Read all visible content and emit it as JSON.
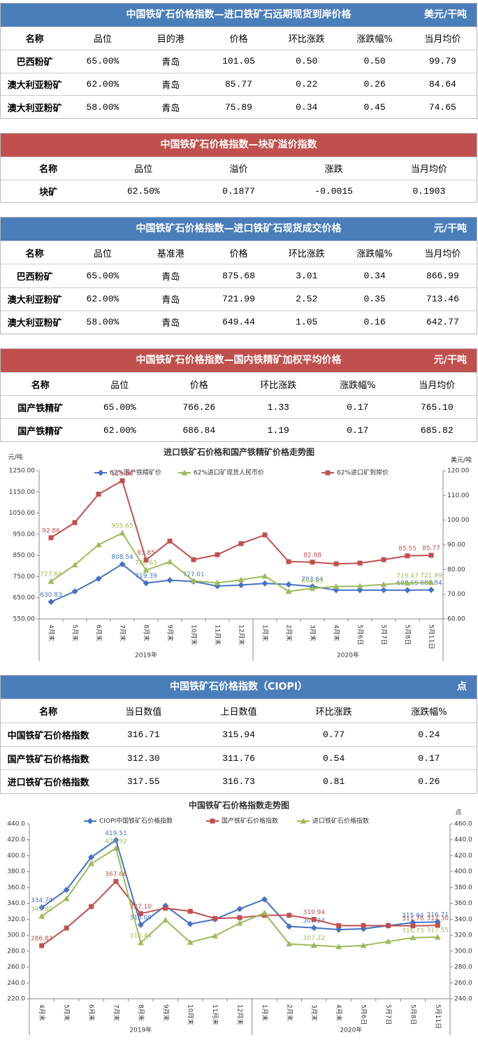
{
  "tables": [
    {
      "title": "中国铁矿石价格指数—进口铁矿石远期现货到岸价格",
      "unit": "美元/干吨",
      "header_color": "#4a7ebb",
      "columns": [
        "名称",
        "品位",
        "目的港",
        "价格",
        "环比涨跌",
        "涨跌幅%",
        "当月均价"
      ],
      "rows": [
        [
          "巴西粉矿",
          "65.00%",
          "青岛",
          "101.05",
          "0.50",
          "0.50",
          "99.79"
        ],
        [
          "澳大利亚粉矿",
          "62.00%",
          "青岛",
          "85.77",
          "0.22",
          "0.26",
          "84.64"
        ],
        [
          "澳大利亚粉矿",
          "58.00%",
          "青岛",
          "75.89",
          "0.34",
          "0.45",
          "74.65"
        ]
      ]
    },
    {
      "title": "中国铁矿石价格指数—块矿溢价指数",
      "header_color": "#c0504d",
      "columns": [
        "名称",
        "品位",
        "溢价",
        "涨跌",
        "当月均价"
      ],
      "rows": [
        [
          "块矿",
          "62.50%",
          "0.1877",
          "-0.0015",
          "0.1903"
        ]
      ]
    },
    {
      "title": "中国铁矿石价格指数—进口铁矿石现货成交价格",
      "unit": "元/干吨",
      "header_color": "#4a7ebb",
      "columns": [
        "名称",
        "品位",
        "基准港",
        "价格",
        "环比涨跌",
        "涨跌幅%",
        "当月均价"
      ],
      "rows": [
        [
          "巴西粉矿",
          "65.00%",
          "青岛",
          "875.68",
          "3.01",
          "0.34",
          "866.99"
        ],
        [
          "澳大利亚粉矿",
          "62.00%",
          "青岛",
          "721.99",
          "2.52",
          "0.35",
          "713.46"
        ],
        [
          "澳大利亚粉矿",
          "58.00%",
          "青岛",
          "649.44",
          "1.05",
          "0.16",
          "642.77"
        ]
      ]
    },
    {
      "title": "中国铁矿石价格指数—国内铁精矿加权平均价格",
      "unit": "元/干吨",
      "header_color": "#c0504d",
      "columns": [
        "名称",
        "品位",
        "价格",
        "环比涨跌",
        "涨跌幅%",
        "当月均价"
      ],
      "rows": [
        [
          "国产铁精矿",
          "65.00%",
          "766.26",
          "1.33",
          "0.17",
          "765.10"
        ],
        [
          "国产铁精矿",
          "62.00%",
          "686.84",
          "1.19",
          "0.17",
          "685.82"
        ]
      ]
    },
    {
      "title": "中国铁矿石价格指数（CIOPI）",
      "unit": "点",
      "header_color": "#4a7ebb",
      "columns": [
        "名称",
        "当日数值",
        "上日数值",
        "环比涨跌",
        "涨跌幅%"
      ],
      "rows": [
        [
          "中国铁矿石价格指数",
          "316.71",
          "315.94",
          "0.77",
          "0.24"
        ],
        [
          "国产铁矿石价格指数",
          "312.30",
          "311.76",
          "0.54",
          "0.17"
        ],
        [
          "进口铁矿石价格指数",
          "317.55",
          "316.73",
          "0.81",
          "0.26"
        ]
      ]
    }
  ],
  "chart_data": [
    {
      "type": "line",
      "title": "进口铁矿石价格和国产铁精矿价格走势图",
      "y_label": "元/吨",
      "y2_label": "美元/吨",
      "categories": [
        "4月末",
        "5月末",
        "6月末",
        "7月末",
        "8月末",
        "9月末",
        "10月末",
        "11月末",
        "12月末",
        "1月末",
        "2月末",
        "3月末",
        "4月末",
        "5月6日",
        "5月7日",
        "5月8日",
        "5月11日"
      ],
      "x_groups": [
        {
          "label": "2019年",
          "start": 0,
          "end": 8
        },
        {
          "label": "2020年",
          "start": 9,
          "end": 16
        }
      ],
      "ylim": [
        550,
        1250
      ],
      "yticks": [
        {
          "value": 550,
          "label": "550.00"
        },
        {
          "value": 650,
          "label": "650.00"
        },
        {
          "value": 750,
          "label": "750.00"
        },
        {
          "value": 850,
          "label": "850.00"
        },
        {
          "value": 950,
          "label": "950.00"
        },
        {
          "value": 1050,
          "label": "1050.00"
        },
        {
          "value": 1150,
          "label": "1150.00"
        },
        {
          "value": 1250,
          "label": "1250.00"
        }
      ],
      "y2lim": [
        60,
        120
      ],
      "y2ticks": [
        {
          "value": 60,
          "label": "60.00"
        },
        {
          "value": 70,
          "label": "70.00"
        },
        {
          "value": 80,
          "label": "80.00"
        },
        {
          "value": 90,
          "label": "90.00"
        },
        {
          "value": 100,
          "label": "100.00"
        },
        {
          "value": 110,
          "label": "110.00"
        },
        {
          "value": 120,
          "label": "120.00"
        }
      ],
      "series": [
        {
          "name": "62%国产铁精矿价",
          "color": "#4472c4",
          "marker": "diamond",
          "values": [
            630.83,
            680,
            740,
            808.54,
            719.39,
            733,
            727.01,
            705,
            710,
            718,
            713,
            703.64,
            686,
            686,
            686,
            685.65,
            686.84
          ],
          "value_labels": [
            "630.83",
            null,
            null,
            "808.54",
            "719.39",
            null,
            "727.01",
            null,
            null,
            null,
            null,
            "703.64",
            null,
            null,
            null,
            "685.65",
            "686.84"
          ]
        },
        {
          "name": "62%进口矿现货人民币价",
          "color": "#9bbb59",
          "marker": "triangle",
          "values": [
            727.64,
            805,
            900,
            955.65,
            780.63,
            820,
            730,
            720,
            735,
            752,
            680,
            694.65,
            703,
            705,
            713,
            719.47,
            721.99
          ],
          "value_labels": [
            "727.64",
            null,
            null,
            "955.65",
            "780.63",
            null,
            null,
            null,
            null,
            null,
            null,
            "694.65",
            null,
            null,
            null,
            "719.47",
            "721.99"
          ]
        },
        {
          "name": "62%进口矿到岸价",
          "color": "#c0504d",
          "marker": "square",
          "axis": "y2",
          "values": [
            92.86,
            99,
            110.5,
            115.96,
            83.85,
            91.5,
            84,
            86,
            90.5,
            94,
            83.2,
            82.98,
            82.3,
            82.6,
            84,
            85.55,
            85.77
          ],
          "value_labels": [
            "92.86",
            null,
            null,
            "115.96",
            "83.85",
            null,
            null,
            null,
            null,
            null,
            null,
            "82.98",
            null,
            null,
            null,
            "85.55",
            "85.77"
          ]
        }
      ]
    },
    {
      "type": "line",
      "title": "中国铁矿石价格指数走势图",
      "y2_label": "点",
      "categories": [
        "4月末",
        "5月末",
        "6月末",
        "7月末",
        "8月末",
        "9月末",
        "10月末",
        "11月末",
        "12月末",
        "1月末",
        "2月末",
        "3月末",
        "4月末",
        "5月6日",
        "5月7日",
        "5月8日",
        "5月11日"
      ],
      "x_groups": [
        {
          "label": "2019年",
          "start": 0,
          "end": 8
        },
        {
          "label": "2020年",
          "start": 9,
          "end": 16
        }
      ],
      "ylim": [
        220,
        440
      ],
      "yticks": [
        {
          "value": 220,
          "label": "220.0"
        },
        {
          "value": 240,
          "label": "240.0"
        },
        {
          "value": 260,
          "label": "260.0"
        },
        {
          "value": 280,
          "label": "280.0"
        },
        {
          "value": 300,
          "label": "300.0"
        },
        {
          "value": 320,
          "label": "320.0"
        },
        {
          "value": 340,
          "label": "340.0"
        },
        {
          "value": 360,
          "label": "360.0"
        },
        {
          "value": 380,
          "label": "380.0"
        },
        {
          "value": 400,
          "label": "400.0"
        },
        {
          "value": 420,
          "label": "420.0"
        },
        {
          "value": 440,
          "label": "440.0"
        }
      ],
      "y2lim": [
        240,
        460
      ],
      "y2ticks": [
        {
          "value": 240,
          "label": "240.0"
        },
        {
          "value": 260,
          "label": "260.0"
        },
        {
          "value": 280,
          "label": "280.0"
        },
        {
          "value": 300,
          "label": "300.0"
        },
        {
          "value": 320,
          "label": "320.0"
        },
        {
          "value": 340,
          "label": "340.0"
        },
        {
          "value": 360,
          "label": "360.0"
        },
        {
          "value": 380,
          "label": "380.0"
        },
        {
          "value": 400,
          "label": "400.0"
        },
        {
          "value": 420,
          "label": "420.0"
        },
        {
          "value": 440,
          "label": "440.0"
        },
        {
          "value": 460,
          "label": "460.0"
        }
      ],
      "series": [
        {
          "name": "CIOPI中国铁矿石价格指数",
          "color": "#4472c4",
          "marker": "diamond",
          "values": [
            334.74,
            357,
            398,
            419.51,
            313.09,
            337,
            314,
            320,
            333,
            345,
            311,
            309.24,
            307,
            308,
            312,
            315.94,
            316.71
          ],
          "value_labels": [
            "334.74",
            null,
            null,
            "419.51",
            "313.09",
            null,
            null,
            null,
            null,
            null,
            null,
            "309.24",
            null,
            null,
            null,
            "315.94",
            "316.71"
          ]
        },
        {
          "name": "国产铁矿石价格指数",
          "color": "#c0504d",
          "marker": "square",
          "values": [
            286.83,
            309,
            336,
            367.66,
            327.1,
            334,
            330,
            321,
            322,
            325,
            325,
            319.94,
            312,
            312,
            312,
            311.76,
            312.3
          ],
          "value_labels": [
            "286.83",
            null,
            null,
            "367.66",
            "327.10",
            null,
            null,
            null,
            null,
            null,
            null,
            "319.94",
            null,
            null,
            null,
            "311.76",
            "312.30"
          ]
        },
        {
          "name": "进口铁矿石价格指数",
          "color": "#9bbb59",
          "marker": "triangle",
          "axis": "y2",
          "values": [
            343.8,
            366,
            410,
            429.32,
            310.44,
            339,
            311,
            319,
            335,
            348,
            309,
            307.22,
            305.5,
            307,
            312,
            316.73,
            317.55
          ],
          "value_labels": [
            "343.80",
            null,
            null,
            "429.32",
            "310.44",
            null,
            null,
            null,
            null,
            null,
            null,
            "307.22",
            null,
            null,
            null,
            "316.73",
            "317.55"
          ]
        }
      ]
    }
  ]
}
